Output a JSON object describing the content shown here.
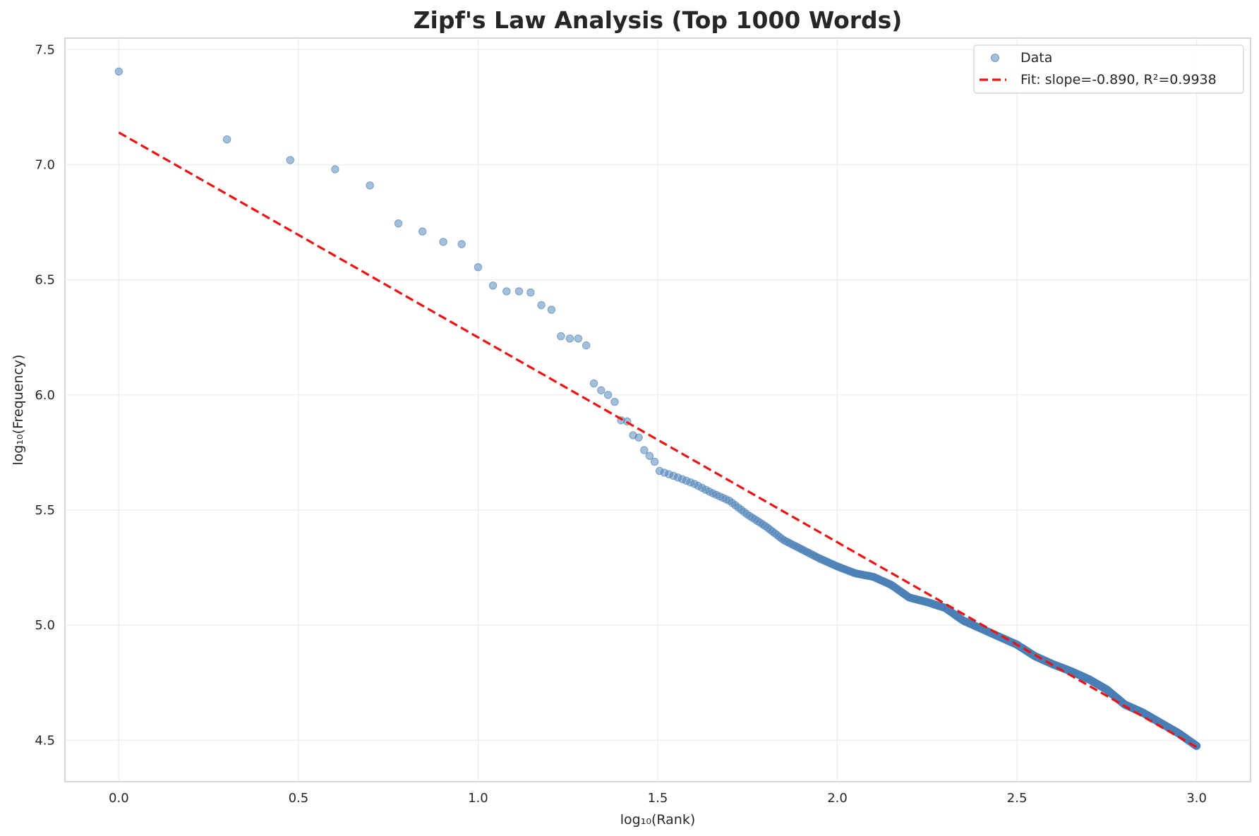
{
  "chart_data": {
    "type": "scatter",
    "title": "Zipf's Law Analysis (Top 1000 Words)",
    "xlabel": "log₁₀(Rank)",
    "ylabel": "log₁₀(Frequency)",
    "xlim": [
      -0.15,
      3.15
    ],
    "ylim": [
      4.32,
      7.55
    ],
    "xticks": [
      "0.0",
      "0.5",
      "1.0",
      "1.5",
      "2.0",
      "2.5",
      "3.0"
    ],
    "yticks": [
      "4.5",
      "5.0",
      "5.5",
      "6.0",
      "6.5",
      "7.0",
      "7.5"
    ],
    "grid": true,
    "legend_position": "top-right",
    "point_color": "#4a7fb5",
    "fit_color": "#ee1111",
    "rank_count": 1000,
    "series": [
      {
        "name": "Data",
        "style": "scatter",
        "explicit_points": [
          [
            1,
            7.405
          ],
          [
            2,
            7.11
          ],
          [
            3,
            7.02
          ],
          [
            4,
            6.98
          ],
          [
            5,
            6.91
          ],
          [
            6,
            6.745
          ],
          [
            7,
            6.71
          ],
          [
            8,
            6.665
          ],
          [
            9,
            6.655
          ],
          [
            10,
            6.555
          ],
          [
            11,
            6.475
          ],
          [
            12,
            6.45
          ],
          [
            13,
            6.45
          ],
          [
            14,
            6.445
          ],
          [
            15,
            6.39
          ],
          [
            16,
            6.37
          ],
          [
            17,
            6.255
          ],
          [
            18,
            6.245
          ],
          [
            19,
            6.245
          ],
          [
            20,
            6.215
          ],
          [
            21,
            6.05
          ],
          [
            22,
            6.02
          ],
          [
            23,
            6.0
          ],
          [
            24,
            5.97
          ],
          [
            25,
            5.89
          ],
          [
            26,
            5.885
          ],
          [
            27,
            5.825
          ],
          [
            28,
            5.815
          ],
          [
            29,
            5.76
          ],
          [
            30,
            5.735
          ],
          [
            31,
            5.71
          ],
          [
            32,
            5.67
          ]
        ],
        "curve_anchors": [
          [
            1.505,
            5.67
          ],
          [
            1.55,
            5.645
          ],
          [
            1.6,
            5.615
          ],
          [
            1.65,
            5.575
          ],
          [
            1.7,
            5.54
          ],
          [
            1.75,
            5.48
          ],
          [
            1.8,
            5.43
          ],
          [
            1.85,
            5.37
          ],
          [
            1.9,
            5.33
          ],
          [
            1.95,
            5.29
          ],
          [
            2.0,
            5.255
          ],
          [
            2.05,
            5.225
          ],
          [
            2.1,
            5.21
          ],
          [
            2.15,
            5.175
          ],
          [
            2.2,
            5.12
          ],
          [
            2.25,
            5.1
          ],
          [
            2.3,
            5.075
          ],
          [
            2.35,
            5.02
          ],
          [
            2.4,
            4.985
          ],
          [
            2.45,
            4.95
          ],
          [
            2.5,
            4.915
          ],
          [
            2.55,
            4.865
          ],
          [
            2.6,
            4.83
          ],
          [
            2.65,
            4.8
          ],
          [
            2.7,
            4.765
          ],
          [
            2.75,
            4.72
          ],
          [
            2.8,
            4.655
          ],
          [
            2.85,
            4.62
          ],
          [
            2.9,
            4.575
          ],
          [
            2.95,
            4.53
          ],
          [
            3.0,
            4.475
          ]
        ]
      },
      {
        "name": "Fit: slope=-0.890, R²=0.9938",
        "style": "dashed-line",
        "slope": -0.89,
        "intercept": 7.14,
        "x_range": [
          0,
          3
        ]
      }
    ]
  }
}
